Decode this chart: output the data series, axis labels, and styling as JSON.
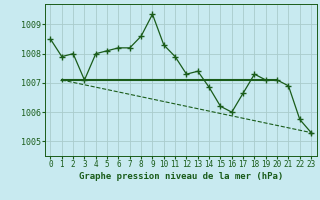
{
  "title": "Graphe pression niveau de la mer (hPa)",
  "background_color": "#c8eaf0",
  "grid_color": "#aacccc",
  "line_color": "#1a5c1a",
  "xlim": [
    -0.5,
    23.5
  ],
  "ylim": [
    1004.5,
    1009.7
  ],
  "yticks": [
    1005,
    1006,
    1007,
    1008,
    1009
  ],
  "xticks": [
    0,
    1,
    2,
    3,
    4,
    5,
    6,
    7,
    8,
    9,
    10,
    11,
    12,
    13,
    14,
    15,
    16,
    17,
    18,
    19,
    20,
    21,
    22,
    23
  ],
  "series1_y": [
    1008.5,
    1007.9,
    1008.0,
    1007.1,
    1008.0,
    1008.1,
    1008.2,
    1008.2,
    1008.6,
    1009.35,
    1008.3,
    1007.9,
    1007.3,
    1007.4,
    1006.85,
    1006.2,
    1006.0,
    1006.65,
    1007.3,
    1007.1,
    1007.1,
    1006.9,
    1005.75,
    1005.3
  ],
  "series2_x": [
    1,
    23
  ],
  "series2_y": [
    1007.1,
    1005.3
  ],
  "series3_x": [
    1,
    20
  ],
  "series3_y": [
    1007.1,
    1007.1
  ]
}
